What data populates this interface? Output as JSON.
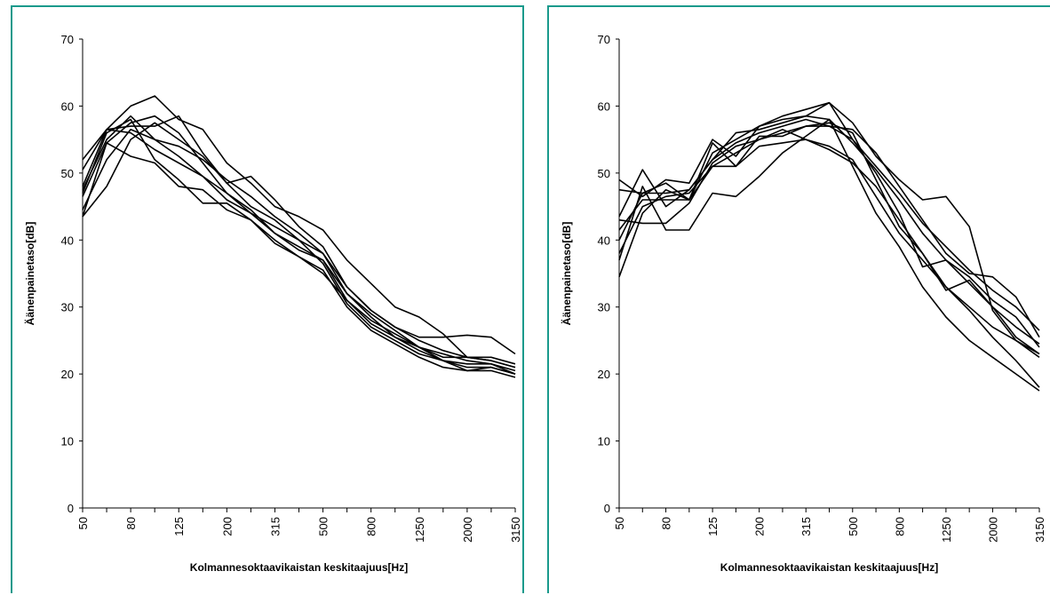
{
  "chart_data": [
    {
      "type": "line",
      "title": "",
      "xlabel": "Kolmannesoktaavikaistan keskitaajuus[Hz]",
      "ylabel": "Äänenpainetaso[dB]",
      "ylim": [
        0,
        70
      ],
      "yticks": [
        "0",
        "10",
        "20",
        "30",
        "40",
        "50",
        "60",
        "70"
      ],
      "categories": [
        "50",
        "63",
        "80",
        "100",
        "125",
        "160",
        "200",
        "250",
        "315",
        "400",
        "500",
        "630",
        "800",
        "1000",
        "1250",
        "1600",
        "2000",
        "2500",
        "3150"
      ],
      "tick_labels": [
        "50",
        "80",
        "125",
        "200",
        "315",
        "500",
        "800",
        "1250",
        "2000",
        "3150"
      ],
      "grid": false,
      "legend": false,
      "series": [
        {
          "values": [
            52.0,
            56.5,
            60.0,
            61.5,
            58.0,
            56.5,
            51.5,
            48.5,
            45.0,
            43.5,
            41.5,
            37.0,
            33.5,
            30.0,
            28.5,
            26.0,
            22.5,
            22.0,
            21.0
          ]
        },
        {
          "values": [
            50.5,
            56.5,
            57.0,
            57.0,
            58.5,
            53.0,
            48.5,
            49.5,
            46.0,
            42.0,
            39.0,
            33.0,
            29.5,
            27.0,
            25.5,
            25.5,
            25.8,
            25.5,
            23.0
          ]
        },
        {
          "values": [
            47.5,
            55.0,
            58.5,
            55.0,
            52.5,
            49.5,
            46.0,
            44.0,
            42.0,
            40.0,
            38.0,
            32.0,
            28.5,
            25.5,
            24.0,
            22.5,
            22.5,
            22.5,
            21.5
          ]
        },
        {
          "values": [
            46.5,
            54.5,
            57.5,
            58.5,
            56.0,
            51.5,
            47.0,
            44.5,
            41.0,
            38.5,
            37.0,
            31.0,
            27.5,
            25.5,
            23.5,
            22.0,
            21.5,
            21.5,
            20.0
          ]
        },
        {
          "values": [
            43.5,
            48.0,
            55.0,
            57.5,
            55.0,
            52.5,
            48.5,
            45.0,
            43.0,
            40.0,
            36.5,
            30.5,
            27.0,
            25.0,
            23.0,
            22.0,
            20.5,
            20.5,
            19.5
          ]
        },
        {
          "values": [
            47.0,
            56.0,
            58.0,
            52.0,
            49.0,
            45.5,
            45.5,
            43.0,
            40.0,
            37.5,
            35.5,
            30.0,
            26.5,
            24.5,
            22.5,
            21.0,
            20.5,
            21.0,
            20.0
          ]
        },
        {
          "values": [
            43.5,
            54.5,
            52.5,
            51.5,
            48.0,
            47.5,
            44.5,
            43.0,
            39.5,
            37.5,
            35.0,
            31.0,
            28.0,
            26.0,
            24.0,
            22.0,
            21.0,
            21.0,
            20.0
          ]
        },
        {
          "values": [
            48.0,
            56.5,
            56.0,
            53.5,
            51.5,
            49.5,
            47.0,
            44.0,
            41.0,
            39.0,
            37.0,
            32.0,
            29.0,
            26.5,
            24.0,
            23.0,
            22.0,
            21.5,
            20.5
          ]
        },
        {
          "values": [
            44.5,
            52.0,
            56.5,
            55.0,
            54.0,
            52.0,
            49.0,
            46.5,
            43.5,
            41.0,
            38.0,
            33.0,
            29.5,
            27.0,
            25.0,
            23.5,
            22.5,
            22.0,
            21.0
          ]
        }
      ]
    },
    {
      "type": "line",
      "title": "",
      "xlabel": "Kolmannesoktaavikaistan keskitaajuus[Hz]",
      "ylabel": "Äänenpainetaso[dB]",
      "ylim": [
        0,
        70
      ],
      "yticks": [
        "0",
        "10",
        "20",
        "30",
        "40",
        "50",
        "60",
        "70"
      ],
      "categories": [
        "50",
        "63",
        "80",
        "100",
        "125",
        "160",
        "200",
        "250",
        "315",
        "400",
        "500",
        "630",
        "800",
        "1000",
        "1250",
        "1600",
        "2000",
        "2500",
        "3150"
      ],
      "tick_labels": [
        "50",
        "80",
        "125",
        "200",
        "315",
        "500",
        "800",
        "1250",
        "2000",
        "3150"
      ],
      "grid": false,
      "legend": false,
      "series": [
        {
          "values": [
            49.0,
            46.5,
            49.0,
            48.5,
            55.0,
            52.5,
            57.0,
            58.5,
            59.5,
            60.5,
            57.5,
            52.5,
            49.0,
            46.0,
            46.5,
            42.0,
            29.5,
            25.0,
            23.0
          ]
        },
        {
          "values": [
            47.5,
            47.0,
            48.5,
            46.0,
            54.5,
            51.0,
            55.5,
            55.5,
            57.0,
            57.0,
            56.5,
            53.0,
            48.0,
            43.0,
            38.0,
            35.0,
            34.5,
            31.5,
            25.5
          ]
        },
        {
          "values": [
            43.5,
            50.5,
            45.0,
            47.5,
            52.0,
            56.0,
            56.5,
            57.5,
            58.5,
            60.5,
            55.0,
            50.0,
            44.0,
            36.0,
            37.0,
            34.5,
            31.0,
            28.5,
            24.0
          ]
        },
        {
          "values": [
            43.0,
            42.5,
            42.5,
            45.5,
            51.5,
            54.0,
            55.0,
            56.0,
            57.0,
            57.5,
            56.0,
            49.0,
            42.0,
            38.0,
            32.5,
            34.0,
            30.0,
            25.5,
            23.0
          ]
        },
        {
          "values": [
            38.0,
            45.0,
            46.5,
            47.0,
            51.0,
            51.0,
            54.0,
            54.5,
            55.0,
            54.0,
            52.0,
            46.5,
            41.0,
            37.0,
            33.0,
            30.0,
            27.0,
            25.0,
            22.5
          ]
        },
        {
          "values": [
            37.0,
            48.0,
            41.5,
            41.5,
            47.0,
            46.5,
            49.5,
            53.0,
            55.5,
            58.0,
            51.0,
            44.0,
            39.0,
            33.0,
            28.5,
            25.0,
            22.5,
            20.0,
            17.5
          ]
        },
        {
          "values": [
            34.5,
            44.0,
            47.5,
            46.0,
            51.0,
            53.0,
            55.0,
            56.5,
            55.0,
            53.5,
            51.5,
            48.0,
            43.0,
            38.0,
            33.0,
            29.5,
            25.5,
            22.0,
            18.0
          ]
        },
        {
          "values": [
            40.0,
            47.0,
            47.0,
            47.5,
            52.0,
            54.5,
            56.0,
            57.0,
            58.0,
            57.0,
            55.0,
            51.0,
            47.0,
            42.5,
            39.0,
            35.5,
            32.5,
            30.0,
            26.5
          ]
        },
        {
          "values": [
            41.5,
            46.0,
            46.0,
            46.0,
            53.0,
            55.0,
            57.0,
            58.0,
            58.5,
            58.0,
            54.5,
            50.5,
            46.0,
            41.0,
            37.0,
            33.5,
            30.0,
            27.0,
            24.5
          ]
        }
      ]
    }
  ]
}
